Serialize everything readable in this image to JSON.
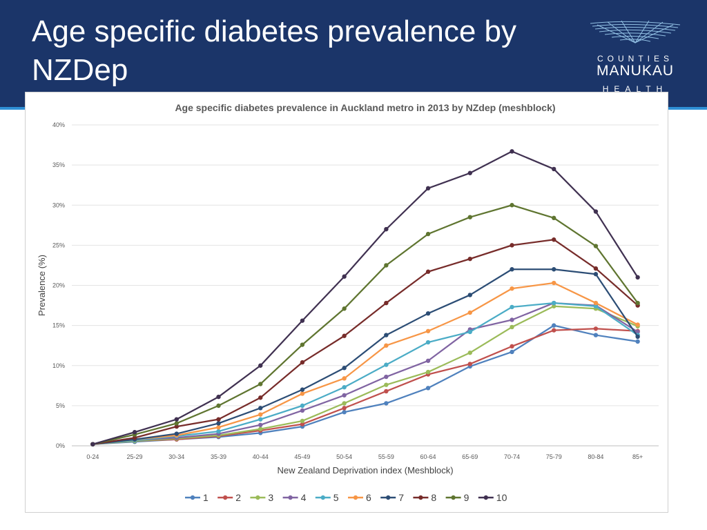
{
  "slide": {
    "title_line1": "Age specific diabetes prevalence by",
    "title_line2": "NZDep"
  },
  "logo": {
    "line1": "COUNTIES",
    "line2": "MANUKAU",
    "line3": "HEALTH"
  },
  "colors": {
    "header_bg": "#1b3569",
    "header_rule": "#2e8fd6"
  },
  "chart_data": {
    "type": "line",
    "title": "Age specific diabetes prevalence in Auckland metro  in 2013 by NZdep (meshblock)",
    "xlabel": "New Zealand Deprivation index (Meshblock)",
    "ylabel": "Prevalence (%)",
    "ylim": [
      0,
      40
    ],
    "yticks": [
      "0%",
      "5%",
      "10%",
      "15%",
      "20%",
      "25%",
      "30%",
      "35%",
      "40%"
    ],
    "ytick_values": [
      0,
      5,
      10,
      15,
      20,
      25,
      30,
      35,
      40
    ],
    "grid": true,
    "legend_position": "bottom",
    "categories": [
      "0-24",
      "25-29",
      "30-34",
      "35-39",
      "40-44",
      "45-49",
      "50-54",
      "55-59",
      "60-64",
      "65-69",
      "70-74",
      "75-79",
      "80-84",
      "85+"
    ],
    "series": [
      {
        "name": "1",
        "color": "#4f81bd",
        "values": [
          0.2,
          0.5,
          0.8,
          1.1,
          1.6,
          2.4,
          4.2,
          5.3,
          7.2,
          9.9,
          11.7,
          15.0,
          13.8,
          13.0
        ]
      },
      {
        "name": "2",
        "color": "#c0504d",
        "values": [
          0.2,
          0.6,
          0.8,
          1.2,
          1.9,
          2.7,
          4.7,
          6.8,
          8.9,
          10.2,
          12.4,
          14.4,
          14.6,
          14.3
        ]
      },
      {
        "name": "3",
        "color": "#9bbb59",
        "values": [
          0.2,
          0.6,
          0.9,
          1.3,
          2.1,
          3.1,
          5.3,
          7.6,
          9.2,
          11.6,
          14.8,
          17.4,
          17.1,
          14.9
        ]
      },
      {
        "name": "4",
        "color": "#8064a2",
        "values": [
          0.2,
          0.7,
          1.0,
          1.5,
          2.6,
          4.4,
          6.3,
          8.6,
          10.6,
          14.5,
          15.7,
          17.8,
          17.5,
          14.2
        ]
      },
      {
        "name": "5",
        "color": "#4bacc6",
        "values": [
          0.2,
          0.7,
          1.2,
          1.8,
          3.3,
          5.0,
          7.3,
          10.1,
          12.9,
          14.2,
          17.3,
          17.8,
          17.4,
          13.8
        ]
      },
      {
        "name": "6",
        "color": "#f79646",
        "values": [
          0.2,
          0.8,
          1.3,
          2.3,
          3.9,
          6.5,
          8.4,
          12.5,
          14.3,
          16.6,
          19.6,
          20.3,
          17.8,
          15.1
        ]
      },
      {
        "name": "7",
        "color": "#2c4d75",
        "values": [
          0.2,
          0.8,
          1.5,
          2.8,
          4.7,
          7.0,
          9.7,
          13.8,
          16.5,
          18.8,
          22.0,
          22.0,
          21.4,
          13.6
        ]
      },
      {
        "name": "8",
        "color": "#772c2a",
        "values": [
          0.2,
          1.0,
          2.4,
          3.3,
          6.0,
          10.4,
          13.7,
          17.8,
          21.7,
          23.3,
          25.0,
          25.7,
          22.1,
          17.5
        ]
      },
      {
        "name": "9",
        "color": "#5f7530",
        "values": [
          0.2,
          1.4,
          2.8,
          5.0,
          7.7,
          12.6,
          17.1,
          22.5,
          26.4,
          28.5,
          30.0,
          28.4,
          24.9,
          17.8
        ]
      },
      {
        "name": "10",
        "color": "#403151",
        "values": [
          0.2,
          1.7,
          3.3,
          6.1,
          10.0,
          15.6,
          21.1,
          27.0,
          32.1,
          34.0,
          36.7,
          34.5,
          29.2,
          21.0
        ]
      }
    ]
  }
}
